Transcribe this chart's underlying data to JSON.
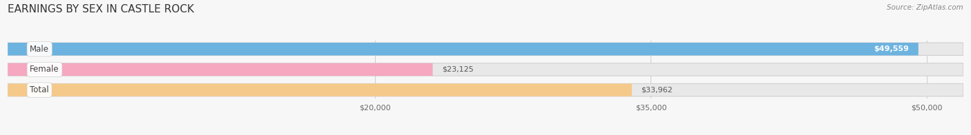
{
  "title": "EARNINGS BY SEX IN CASTLE ROCK",
  "source": "Source: ZipAtlas.com",
  "categories": [
    "Male",
    "Female",
    "Total"
  ],
  "values": [
    49559,
    23125,
    33962
  ],
  "bar_colors": [
    "#6db3e0",
    "#f5a8c0",
    "#f5c98a"
  ],
  "value_labels": [
    "$49,559",
    "$23,125",
    "$33,962"
  ],
  "value_label_inside": [
    true,
    false,
    false
  ],
  "x_min": 0,
  "x_max": 52000,
  "x_ticks": [
    20000,
    35000,
    50000
  ],
  "x_tick_labels": [
    "$20,000",
    "$35,000",
    "$50,000"
  ],
  "background_color": "#f7f7f7",
  "bar_bg_color": "#e8e8e8",
  "bar_border_color": "#d0d0d0",
  "title_fontsize": 11,
  "bar_height": 0.62,
  "figsize": [
    14.06,
    1.96
  ],
  "dpi": 100
}
